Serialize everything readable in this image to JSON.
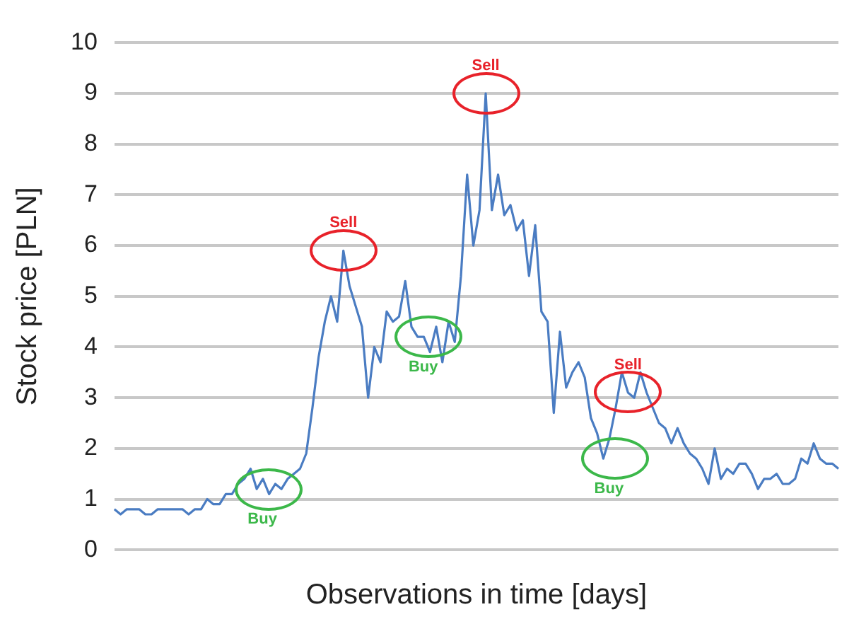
{
  "chart_data": {
    "type": "line",
    "xlabel": "Observations in time [days]",
    "ylabel": "Stock price [PLN]",
    "categories": [
      null,
      null,
      null,
      null,
      null,
      null,
      null,
      null,
      null,
      null,
      null,
      null,
      null,
      null,
      null,
      null,
      null,
      null,
      null,
      null,
      null,
      null,
      null,
      null,
      null,
      null,
      null,
      null,
      null,
      null,
      null,
      null,
      null,
      null,
      null,
      null,
      null,
      null,
      null,
      null,
      null,
      null,
      null,
      null,
      null,
      null,
      null,
      null,
      null,
      null,
      null,
      null,
      null,
      null,
      null,
      null,
      null,
      null,
      null,
      null,
      null,
      null,
      null,
      null,
      null,
      null,
      null,
      null,
      null,
      null,
      null,
      null,
      null,
      null,
      null,
      null,
      null,
      null,
      null,
      null,
      null,
      null,
      null,
      null,
      null,
      null,
      null,
      null,
      null,
      null,
      null,
      null,
      null,
      null,
      null,
      null,
      null,
      null,
      null,
      null,
      null,
      null,
      null,
      null,
      null,
      null,
      null,
      null,
      null,
      null,
      null,
      null,
      null,
      null,
      null,
      null,
      null,
      null
    ],
    "series": [
      {
        "color": "#4a7cc2",
        "values": [
          0.8,
          0.7,
          0.8,
          0.8,
          0.8,
          0.7,
          0.7,
          0.8,
          0.8,
          0.8,
          0.8,
          0.8,
          0.7,
          0.8,
          0.8,
          1.0,
          0.9,
          0.9,
          1.1,
          1.1,
          1.3,
          1.4,
          1.6,
          1.2,
          1.4,
          1.1,
          1.3,
          1.2,
          1.4,
          1.5,
          1.6,
          1.9,
          2.8,
          3.8,
          4.5,
          5.0,
          4.5,
          5.9,
          5.2,
          4.8,
          4.4,
          3.0,
          4.0,
          3.7,
          4.7,
          4.5,
          4.6,
          5.3,
          4.4,
          4.2,
          4.2,
          3.9,
          4.4,
          3.7,
          4.5,
          4.1,
          5.4,
          7.4,
          6.0,
          6.7,
          9.0,
          6.7,
          7.4,
          6.6,
          6.8,
          6.3,
          6.5,
          5.4,
          6.4,
          4.7,
          4.5,
          2.7,
          4.3,
          3.2,
          3.5,
          3.7,
          3.4,
          2.6,
          2.3,
          1.8,
          2.2,
          2.8,
          3.5,
          3.1,
          3.0,
          3.5,
          3.1,
          2.8,
          2.5,
          2.4,
          2.1,
          2.4,
          2.1,
          1.9,
          1.8,
          1.6,
          1.3,
          2.0,
          1.4,
          1.6,
          1.5,
          1.7,
          1.7,
          1.5,
          1.2,
          1.4,
          1.4,
          1.5,
          1.3,
          1.3,
          1.4,
          1.8,
          1.7,
          2.1,
          1.8,
          1.7,
          1.7,
          1.6
        ]
      }
    ],
    "ylim": [
      0,
      10
    ],
    "yticks": [
      0,
      1,
      2,
      3,
      4,
      5,
      6,
      7,
      8,
      9,
      10
    ],
    "grid": "y",
    "marker": "none",
    "line_style": "solid",
    "legend": false,
    "annotations": [
      {
        "text": "Buy",
        "y": 1.2
      },
      {
        "text": "Sell",
        "y": 5.9
      },
      {
        "text": "Buy",
        "y": 4.2
      },
      {
        "text": "Sell",
        "y": 9.0
      },
      {
        "text": "Buy",
        "y": 1.8
      },
      {
        "text": "Sell",
        "y": 3.1
      }
    ]
  }
}
